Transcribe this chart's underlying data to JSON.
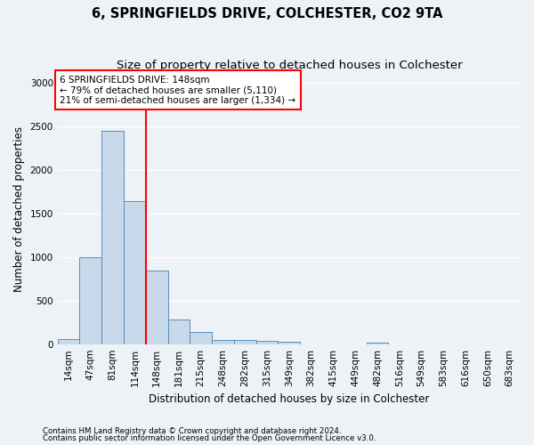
{
  "title1": "6, SPRINGFIELDS DRIVE, COLCHESTER, CO2 9TA",
  "title2": "Size of property relative to detached houses in Colchester",
  "xlabel": "Distribution of detached houses by size in Colchester",
  "ylabel": "Number of detached properties",
  "footnote1": "Contains HM Land Registry data © Crown copyright and database right 2024.",
  "footnote2": "Contains public sector information licensed under the Open Government Licence v3.0.",
  "bar_labels": [
    "14sqm",
    "47sqm",
    "81sqm",
    "114sqm",
    "148sqm",
    "181sqm",
    "215sqm",
    "248sqm",
    "282sqm",
    "315sqm",
    "349sqm",
    "382sqm",
    "415sqm",
    "449sqm",
    "482sqm",
    "516sqm",
    "549sqm",
    "583sqm",
    "616sqm",
    "650sqm",
    "683sqm"
  ],
  "bar_values": [
    55,
    1000,
    2450,
    1640,
    840,
    280,
    140,
    50,
    45,
    35,
    25,
    0,
    0,
    0,
    20,
    0,
    0,
    0,
    0,
    0,
    0
  ],
  "bar_color": "#c9d9ec",
  "bar_edge_color": "#5b8db8",
  "red_line_index": 4,
  "annotation_title": "6 SPRINGFIELDS DRIVE: 148sqm",
  "annotation_line1": "← 79% of detached houses are smaller (5,110)",
  "annotation_line2": "21% of semi-detached houses are larger (1,334) →",
  "annotation_box_color": "white",
  "annotation_box_edgecolor": "red",
  "ylim": [
    0,
    3100
  ],
  "yticks": [
    0,
    500,
    1000,
    1500,
    2000,
    2500,
    3000
  ],
  "background_color": "#edf2f7",
  "grid_color": "white",
  "title1_fontsize": 10.5,
  "title2_fontsize": 9.5,
  "xlabel_fontsize": 8.5,
  "ylabel_fontsize": 8.5,
  "tick_fontsize": 7.5,
  "annotation_fontsize": 7.5
}
